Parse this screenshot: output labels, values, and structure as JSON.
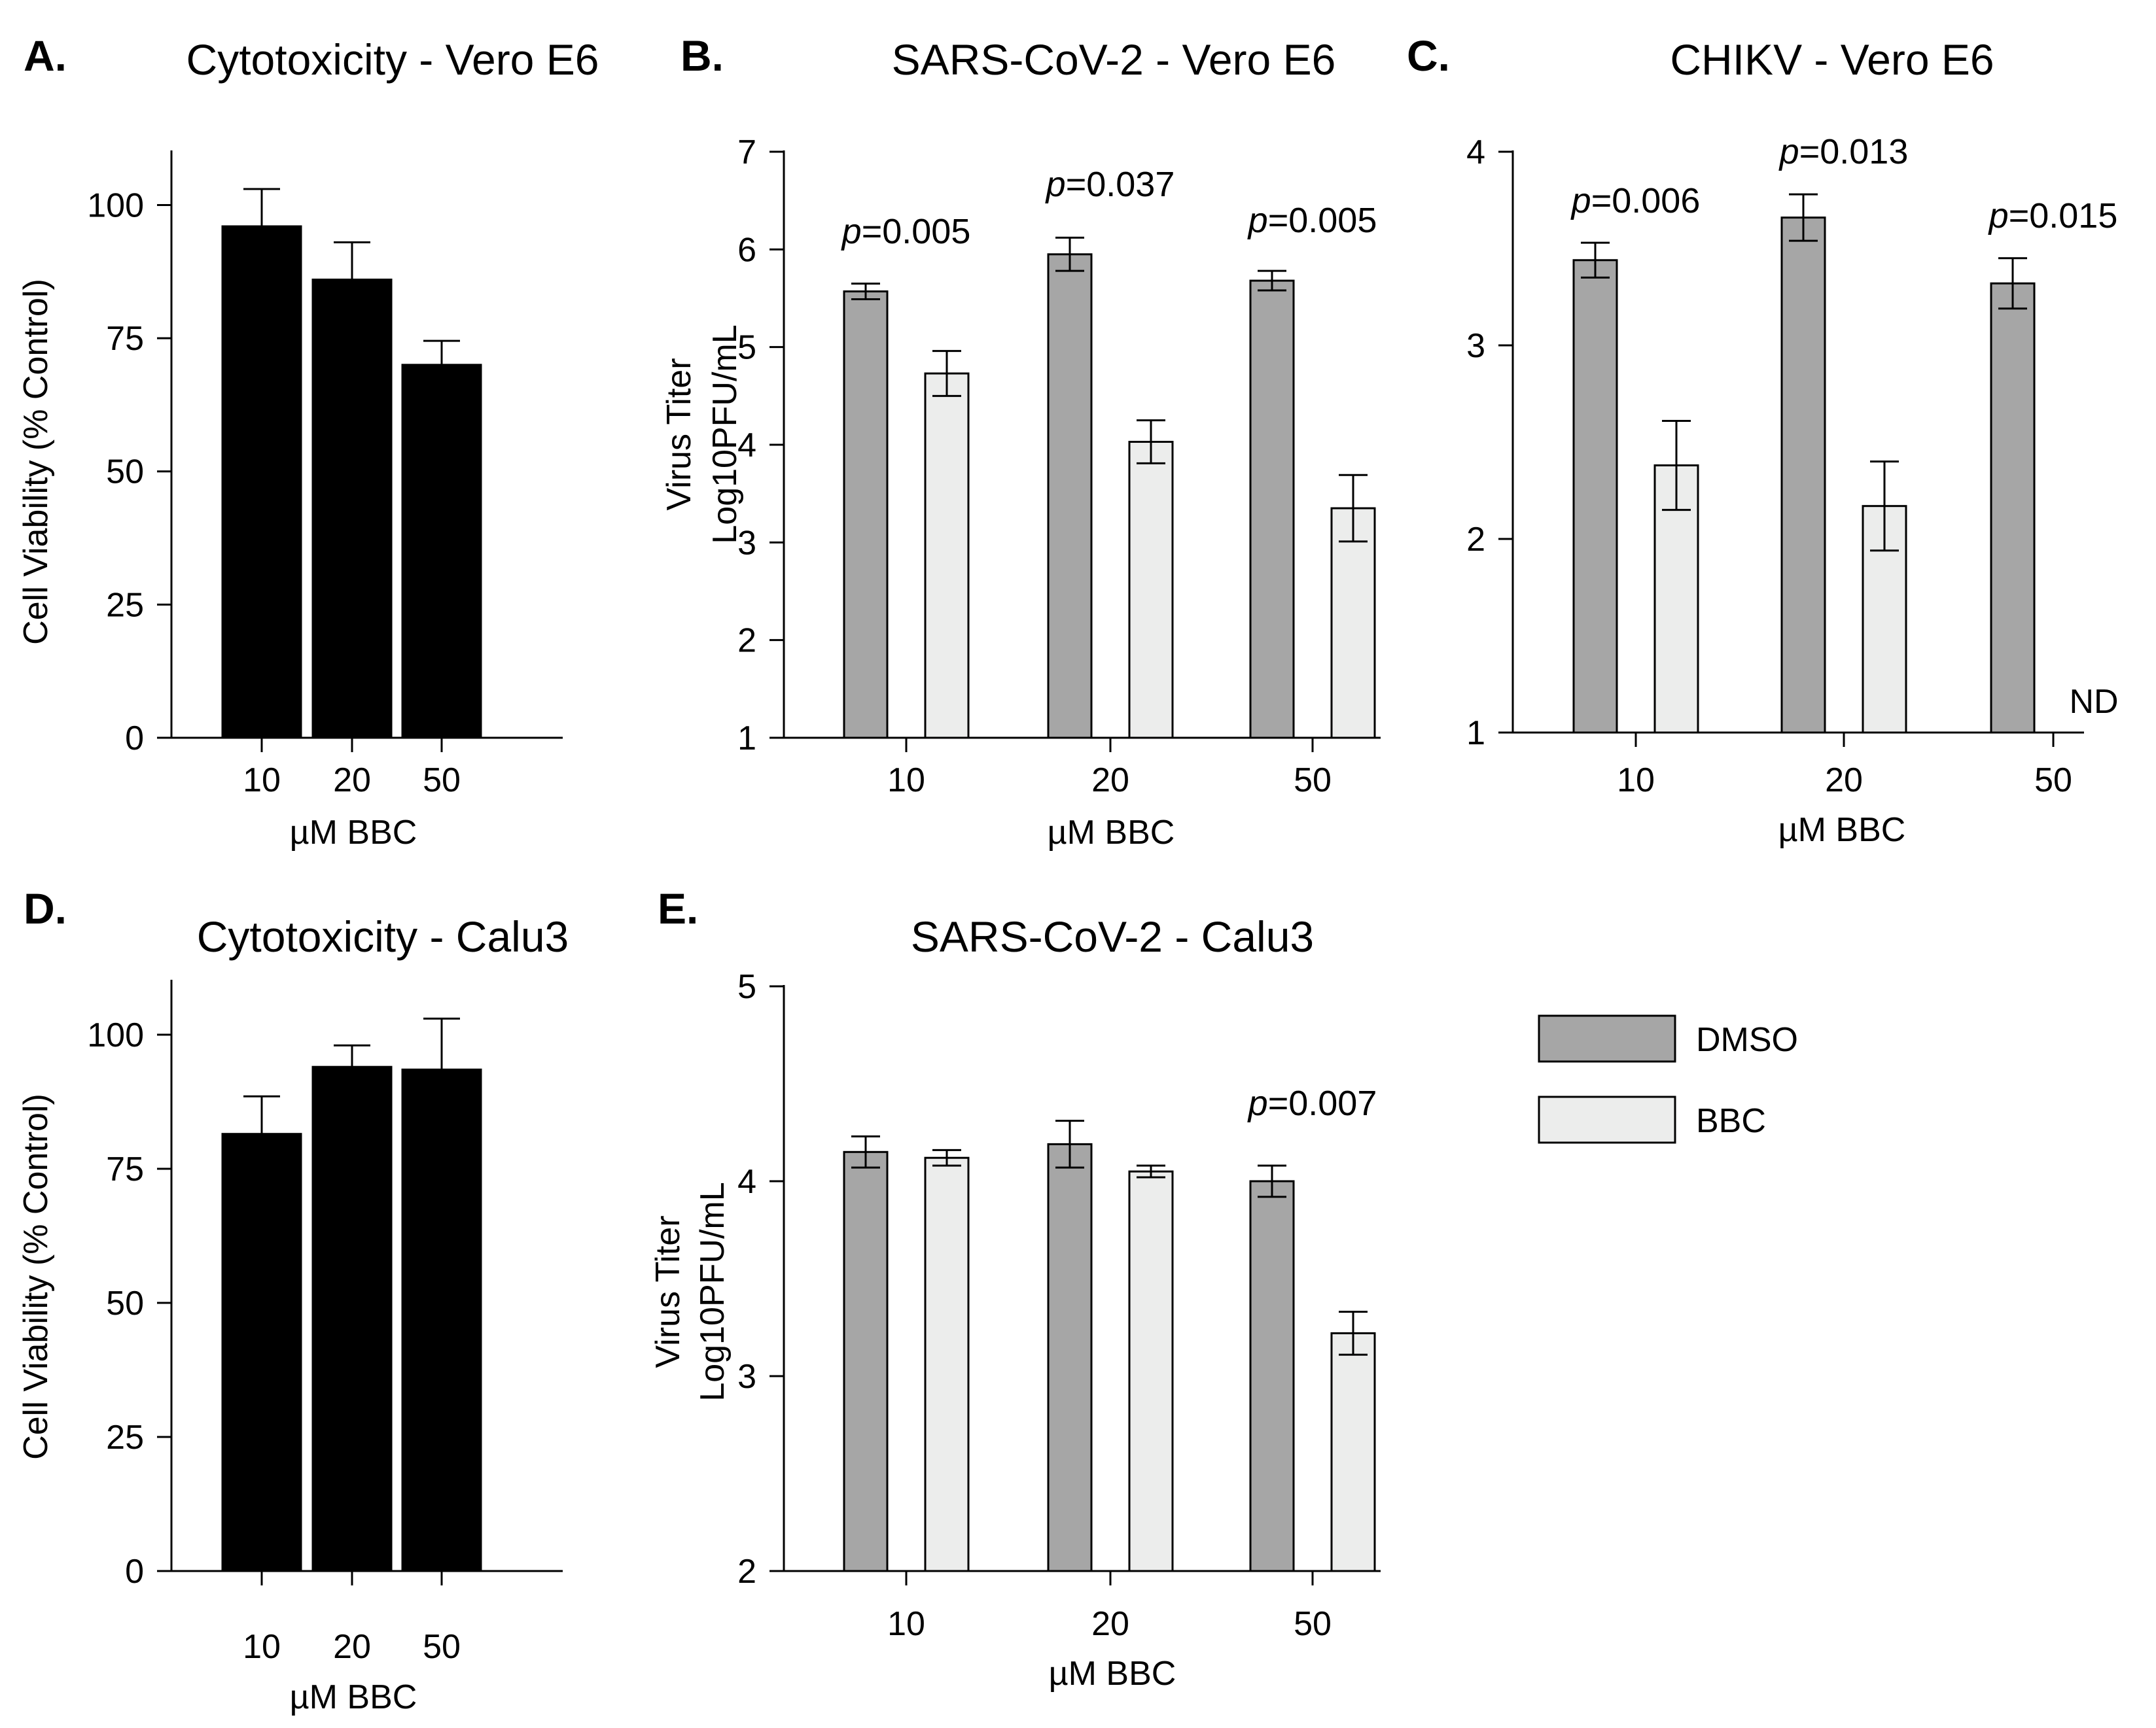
{
  "chart_data": [
    {
      "panel": "A.",
      "type": "bar",
      "title": "Cytotoxicity - Vero E6",
      "xlabel": "µM BBC",
      "ylabel": "Cell Viability (% Control)",
      "categories": [
        "10",
        "20",
        "50"
      ],
      "ylim": [
        0,
        110
      ],
      "yticks": [
        0,
        25,
        50,
        75,
        100
      ],
      "series": [
        {
          "values": [
            96,
            86,
            70
          ],
          "errors": [
            7,
            7,
            4.5
          ],
          "color": "#000000"
        }
      ],
      "annotations": []
    },
    {
      "panel": "B.",
      "type": "bar",
      "title": "SARS-CoV-2 - Vero E6",
      "xlabel": "µM BBC",
      "ylabel_line1": "Virus Titer",
      "ylabel_line2": "Log10PFU/mL",
      "categories": [
        "10",
        "20",
        "50"
      ],
      "ylim": [
        1,
        7
      ],
      "yticks": [
        1,
        2,
        3,
        4,
        5,
        6,
        7
      ],
      "series": [
        {
          "name": "DMSO",
          "values": [
            5.57,
            5.95,
            5.68
          ],
          "errors": [
            0.08,
            0.17,
            0.1
          ],
          "color": "#a6a6a6"
        },
        {
          "name": "BBC",
          "values": [
            4.73,
            4.03,
            3.35
          ],
          "errors": [
            0.23,
            0.22,
            0.34
          ],
          "color": "#ecedec"
        }
      ],
      "annotations": [
        "p=0.005",
        "p=0.037",
        "p=0.005"
      ]
    },
    {
      "panel": "C.",
      "type": "bar",
      "title": "CHIKV - Vero E6",
      "xlabel": "µM BBC",
      "categories": [
        "10",
        "20",
        "50"
      ],
      "ylim": [
        1,
        4
      ],
      "yticks": [
        1,
        2,
        3,
        4
      ],
      "series": [
        {
          "name": "DMSO",
          "values": [
            3.44,
            3.66,
            3.32
          ],
          "errors": [
            0.09,
            0.12,
            0.13
          ],
          "color": "#a6a6a6"
        },
        {
          "name": "BBC",
          "values": [
            2.38,
            2.17,
            null
          ],
          "errors": [
            0.23,
            0.23,
            0
          ],
          "color": "#ecedec"
        }
      ],
      "annotations": [
        "p=0.006",
        "p=0.013",
        "p=0.015"
      ],
      "nd_label": "ND"
    },
    {
      "panel": "D.",
      "type": "bar",
      "title": "Cytotoxicity - Calu3",
      "xlabel": "µM BBC",
      "ylabel": "Cell Viability (% Control)",
      "categories": [
        "10",
        "20",
        "50"
      ],
      "ylim": [
        0,
        110
      ],
      "yticks": [
        0,
        25,
        50,
        75,
        100
      ],
      "series": [
        {
          "values": [
            81.5,
            94,
            93.5
          ],
          "errors": [
            7,
            4,
            9.5
          ],
          "color": "#000000"
        }
      ],
      "annotations": []
    },
    {
      "panel": "E.",
      "type": "bar",
      "title": "SARS-CoV-2 - Calu3",
      "xlabel": "µM BBC",
      "ylabel_line1": "Virus Titer",
      "ylabel_line2": "Log10PFU/mL",
      "categories": [
        "10",
        "20",
        "50"
      ],
      "ylim": [
        2,
        5
      ],
      "yticks": [
        2,
        3,
        4,
        5
      ],
      "series": [
        {
          "name": "DMSO",
          "values": [
            4.15,
            4.19,
            4.0
          ],
          "errors": [
            0.08,
            0.12,
            0.08
          ],
          "color": "#a6a6a6"
        },
        {
          "name": "BBC",
          "values": [
            4.12,
            4.05,
            3.22
          ],
          "errors": [
            0.04,
            0.03,
            0.11
          ],
          "color": "#ecedec"
        }
      ],
      "annotations": [
        "",
        "",
        "p=0.007"
      ]
    }
  ],
  "legend": [
    {
      "label": "DMSO",
      "color": "#a6a6a6"
    },
    {
      "label": "BBC",
      "color": "#ecedec"
    }
  ]
}
